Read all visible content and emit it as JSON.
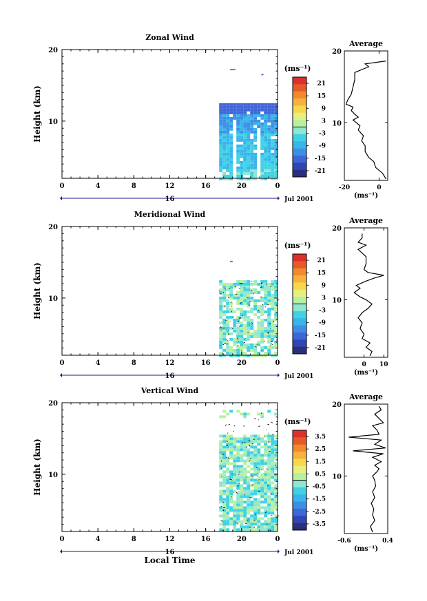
{
  "colorbar_colors": [
    "#2b2f7e",
    "#2f46b5",
    "#3f66d9",
    "#3d8fe6",
    "#38b5ea",
    "#3fd2e6",
    "#8fe7cf",
    "#b8f0a2",
    "#e6f07e",
    "#f6d84a",
    "#f6b23a",
    "#f08a2c",
    "#e9582a",
    "#df2f2b"
  ],
  "chart_data": [
    {
      "type": "heatmap",
      "title": "Zonal Wind",
      "ylabel": "Height (km)",
      "xticks": [
        "0",
        "4",
        "8",
        "12",
        "16",
        "20",
        "0"
      ],
      "ytick_labels": [
        "20",
        "10"
      ],
      "ylim": [
        2,
        20
      ],
      "xlim": [
        0,
        24
      ],
      "date_label": "16",
      "date_suffix": "Jul 2001",
      "unit_label": "(ms⁻¹)",
      "colorbar_ticks": [
        "21",
        "15",
        "9",
        "3",
        "-3",
        "-9",
        "-15",
        "-21"
      ],
      "data_window_hours": [
        17.5,
        24
      ],
      "data_top_km": 12.5,
      "average": {
        "title": "Average",
        "xticks": [
          "-20",
          "0"
        ],
        "xlim": [
          -20,
          5
        ],
        "yticks": [
          "20",
          "10"
        ],
        "unit_label": "(ms⁻¹)",
        "profile": [
          [
            4,
            2.2
          ],
          [
            2,
            3
          ],
          [
            -2,
            3.8
          ],
          [
            -3,
            4.6
          ],
          [
            -6,
            5.2
          ],
          [
            -8,
            6
          ],
          [
            -8,
            6.8
          ],
          [
            -10,
            7.5
          ],
          [
            -9,
            8.2
          ],
          [
            -12,
            9
          ],
          [
            -11,
            9.6
          ],
          [
            -13,
            10
          ],
          [
            -15,
            10.4
          ],
          [
            -12,
            10.8
          ],
          [
            -14,
            11.2
          ],
          [
            -16,
            11.7
          ],
          [
            -15,
            12.2
          ],
          [
            -19,
            12.6
          ],
          [
            -18,
            13.2
          ],
          [
            -16,
            14
          ],
          [
            -15,
            15
          ],
          [
            -14,
            16
          ],
          [
            -14,
            17
          ],
          [
            -6,
            17.8
          ],
          [
            -8,
            18.2
          ],
          [
            4,
            18.6
          ]
        ]
      }
    },
    {
      "type": "heatmap",
      "title": "Meridional Wind",
      "ylabel": "Height (km)",
      "xticks": [
        "0",
        "4",
        "8",
        "12",
        "16",
        "20",
        "0"
      ],
      "ytick_labels": [
        "20",
        "10"
      ],
      "ylim": [
        2,
        20
      ],
      "xlim": [
        0,
        24
      ],
      "date_label": "16",
      "date_suffix": "Jul 2001",
      "unit_label": "(ms⁻¹)",
      "colorbar_ticks": [
        "21",
        "15",
        "9",
        "3",
        "-3",
        "-9",
        "-15",
        "-21"
      ],
      "data_window_hours": [
        17.5,
        24
      ],
      "data_top_km": 12.5,
      "average": {
        "title": "Average",
        "xticks": [
          "0",
          "10"
        ],
        "xlim": [
          -10,
          12
        ],
        "yticks": [
          "20",
          "10"
        ],
        "unit_label": "(ms⁻¹)",
        "profile": [
          [
            3,
            2.2
          ],
          [
            4,
            2.8
          ],
          [
            1,
            3.4
          ],
          [
            3,
            4
          ],
          [
            -1,
            4.6
          ],
          [
            0,
            5.2
          ],
          [
            -2,
            6
          ],
          [
            -1,
            6.8
          ],
          [
            -3,
            7.5
          ],
          [
            -1,
            8.2
          ],
          [
            2,
            8.8
          ],
          [
            4,
            9.4
          ],
          [
            1,
            10
          ],
          [
            -2,
            10.4
          ],
          [
            -5,
            11
          ],
          [
            -2,
            11.6
          ],
          [
            -4,
            12
          ],
          [
            1,
            12.6
          ],
          [
            5,
            13
          ],
          [
            10,
            13.4
          ],
          [
            2,
            13.8
          ],
          [
            0,
            14.2
          ],
          [
            1,
            15
          ],
          [
            1,
            16
          ],
          [
            -3,
            17
          ],
          [
            1,
            17.6
          ],
          [
            -3,
            18
          ],
          [
            -1,
            18.6
          ],
          [
            -1,
            19.2
          ]
        ]
      }
    },
    {
      "type": "heatmap",
      "title": "Vertical Wind",
      "ylabel": "Height (km)",
      "xlabel": "Local Time",
      "xticks": [
        "0",
        "4",
        "8",
        "12",
        "16",
        "20",
        "0"
      ],
      "ytick_labels": [
        "20",
        "10"
      ],
      "ylim": [
        2,
        20
      ],
      "xlim": [
        0,
        24
      ],
      "date_label": "16",
      "date_suffix": "Jul 2001",
      "unit_label": "(ms⁻¹)",
      "colorbar_ticks": [
        "3.5",
        "2.5",
        "1.5",
        "0.5",
        "-0.5",
        "-1.5",
        "-2.5",
        "-3.5"
      ],
      "data_window_hours": [
        17.5,
        24
      ],
      "data_top_km": 19,
      "average": {
        "title": "Average",
        "xticks": [
          "-0.6",
          "0.4"
        ],
        "xlim": [
          -0.6,
          0.4
        ],
        "yticks": [
          "20",
          "10"
        ],
        "unit_label": "(ms⁻¹)",
        "profile": [
          [
            0.05,
            2.2
          ],
          [
            0.0,
            3
          ],
          [
            0.1,
            3.8
          ],
          [
            0.05,
            4.6
          ],
          [
            0.08,
            5.4
          ],
          [
            0.02,
            6.2
          ],
          [
            0.1,
            7
          ],
          [
            0.05,
            7.8
          ],
          [
            0.12,
            8.6
          ],
          [
            0.1,
            9.4
          ],
          [
            0.05,
            10
          ],
          [
            0.15,
            10.6
          ],
          [
            0.2,
            11
          ],
          [
            0.1,
            11.5
          ],
          [
            0.25,
            12
          ],
          [
            0.05,
            12.6
          ],
          [
            0.3,
            13.1
          ],
          [
            -0.4,
            13.5
          ],
          [
            0.35,
            13.9
          ],
          [
            0.1,
            14.4
          ],
          [
            0.25,
            15
          ],
          [
            -0.5,
            15.4
          ],
          [
            0.2,
            15.8
          ],
          [
            0.15,
            16.4
          ],
          [
            0.05,
            17
          ],
          [
            0.3,
            17.4
          ],
          [
            0.2,
            18
          ],
          [
            0.1,
            18.6
          ],
          [
            0.25,
            19.2
          ],
          [
            0.2,
            19.7
          ]
        ]
      }
    }
  ]
}
